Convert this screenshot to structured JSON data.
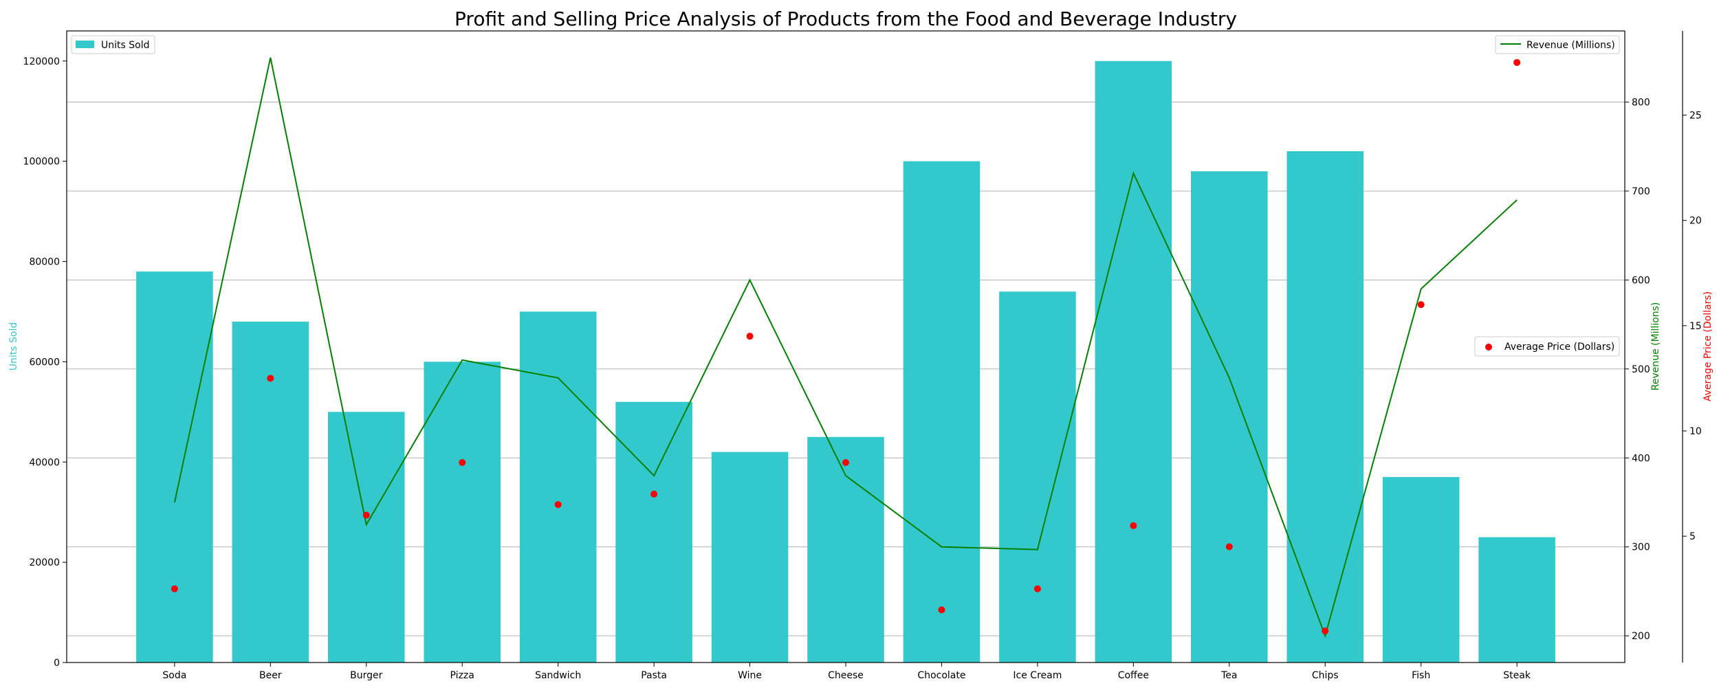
{
  "chart_data": {
    "type": "bar",
    "title": "Profit and Selling Price Analysis of Products from the Food and Beverage Industry",
    "categories": [
      "Soda",
      "Beer",
      "Burger",
      "Pizza",
      "Sandwich",
      "Pasta",
      "Wine",
      "Cheese",
      "Chocolate",
      "Ice Cream",
      "Coffee",
      "Tea",
      "Chips",
      "Fish",
      "Steak"
    ],
    "series": [
      {
        "name": "Units Sold",
        "type": "bar",
        "axis": "left",
        "color": "#33C8CB",
        "values": [
          78000,
          68000,
          50000,
          60000,
          70000,
          52000,
          42000,
          45000,
          100000,
          74000,
          120000,
          98000,
          102000,
          37000,
          25000
        ]
      },
      {
        "name": "Revenue (Millions)",
        "type": "line",
        "axis": "right1",
        "color": "#008000",
        "values": [
          350,
          850,
          325,
          510,
          490,
          380,
          600,
          380,
          300,
          297,
          720,
          490,
          200,
          590,
          690
        ]
      },
      {
        "name": "Average Price (Dollars)",
        "type": "scatter",
        "axis": "right2",
        "color": "#FF0000",
        "values": [
          2.5,
          12.5,
          6.0,
          8.5,
          6.5,
          7.0,
          14.5,
          8.5,
          1.5,
          2.5,
          5.5,
          4.5,
          0.5,
          16.0,
          27.5
        ]
      }
    ],
    "axes": {
      "left": {
        "label": "Units Sold",
        "color": "#33C8CB",
        "ylim": [
          0,
          126000
        ],
        "ticks": [
          0,
          20000,
          40000,
          60000,
          80000,
          100000,
          120000
        ]
      },
      "right1": {
        "label": "Revenue (Millions)",
        "color": "#008000",
        "ylim": [
          170,
          880
        ],
        "ticks": [
          200,
          300,
          400,
          500,
          600,
          700,
          800
        ]
      },
      "right2": {
        "label": "Average Price (Dollars)",
        "color": "#FF0000",
        "ylim": [
          -1,
          29
        ],
        "ticks": [
          5,
          10,
          15,
          20,
          25
        ]
      }
    },
    "grid": true,
    "legends": [
      {
        "series": "Units Sold",
        "placement": "top-left"
      },
      {
        "series": "Revenue (Millions)",
        "placement": "top-right"
      },
      {
        "series": "Average Price (Dollars)",
        "placement": "center-right"
      }
    ]
  }
}
